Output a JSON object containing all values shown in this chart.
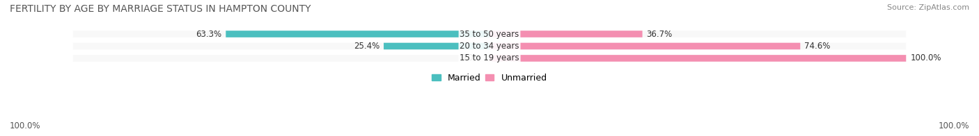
{
  "title": "FERTILITY BY AGE BY MARRIAGE STATUS IN HAMPTON COUNTY",
  "source": "Source: ZipAtlas.com",
  "categories": [
    "15 to 19 years",
    "20 to 34 years",
    "35 to 50 years"
  ],
  "married": [
    0.0,
    25.4,
    63.3
  ],
  "unmarried": [
    100.0,
    74.6,
    36.7
  ],
  "married_color": "#4BBFBF",
  "unmarried_color": "#F48FB1",
  "bar_bg_color": "#F0F0F0",
  "bar_height": 0.55,
  "label_fontsize": 8.5,
  "title_fontsize": 10,
  "source_fontsize": 8,
  "legend_fontsize": 9,
  "axis_label_left": "100.0%",
  "axis_label_right": "100.0%",
  "background_color": "#FFFFFF",
  "row_bg_color": "#F8F8F8"
}
